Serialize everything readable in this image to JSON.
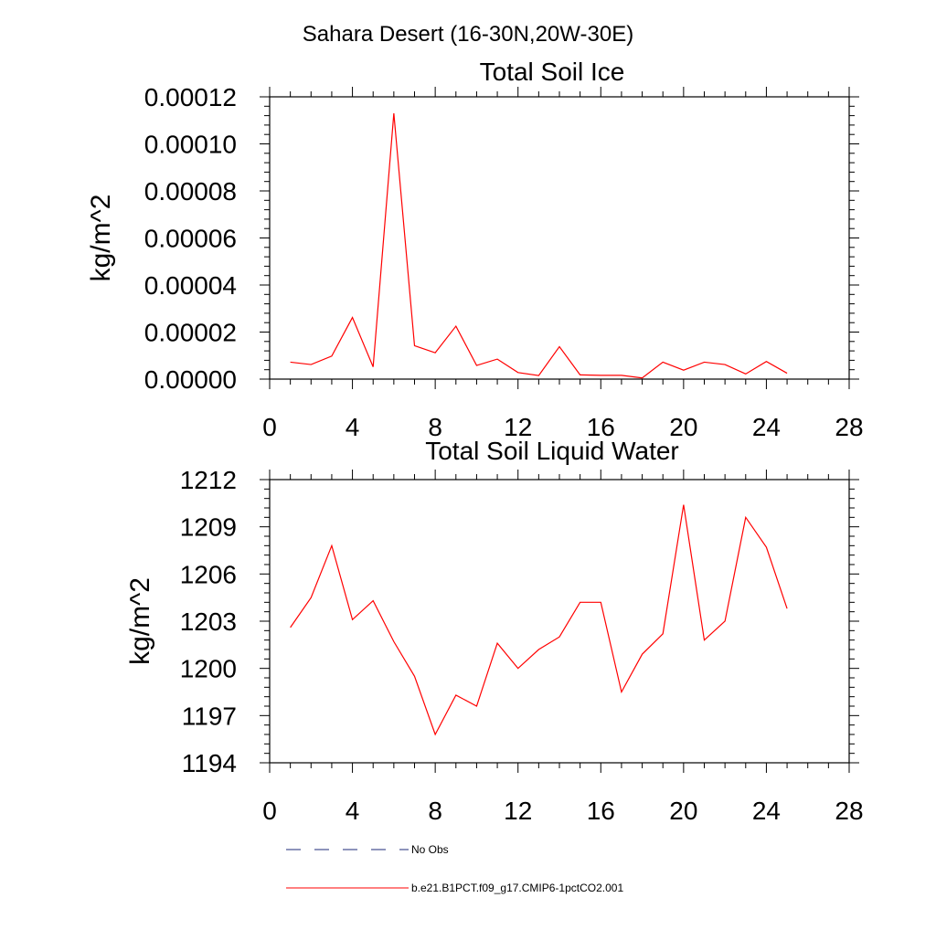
{
  "figure": {
    "main_title": "Sahara Desert (16-30N,20W-30E)"
  },
  "chart_data": [
    {
      "type": "line",
      "title": "Total Soil Ice",
      "xlabel": "",
      "ylabel": "kg/m^2",
      "xlim": [
        0,
        28
      ],
      "ylim": [
        0,
        0.00012
      ],
      "x_ticks": [
        "0",
        "4",
        "8",
        "12",
        "16",
        "20",
        "24",
        "28"
      ],
      "y_ticks": [
        "0.00000",
        "0.00002",
        "0.00004",
        "0.00006",
        "0.00008",
        "0.00010",
        "0.00012"
      ],
      "grid": false,
      "series": [
        {
          "name": "b.e21.B1PCT.f09_g17.CMIP6-1pctCO2.001",
          "color": "#ff0000",
          "x": [
            1,
            2,
            3,
            4,
            5,
            6,
            7,
            8,
            9,
            10,
            11,
            12,
            13,
            14,
            15,
            16,
            17,
            18,
            19,
            20,
            21,
            22,
            23,
            24,
            25
          ],
          "y": [
            7.2e-06,
            6.2e-06,
            9.8e-06,
            2.62e-05,
            5.2e-06,
            0.000113,
            1.42e-05,
            1.12e-05,
            2.25e-05,
            5.8e-06,
            8.5e-06,
            2.8e-06,
            1.5e-06,
            1.38e-05,
            1.8e-06,
            1.6e-06,
            1.6e-06,
            5e-07,
            7.2e-06,
            3.8e-06,
            7.2e-06,
            6.2e-06,
            2.2e-06,
            7.5e-06,
            2.5e-06
          ]
        }
      ]
    },
    {
      "type": "line",
      "title": "Total Soil Liquid Water",
      "xlabel": "",
      "ylabel": "kg/m^2",
      "xlim": [
        0,
        28
      ],
      "ylim": [
        1194,
        1212
      ],
      "x_ticks": [
        "0",
        "4",
        "8",
        "12",
        "16",
        "20",
        "24",
        "28"
      ],
      "y_ticks": [
        "1194",
        "1197",
        "1200",
        "1203",
        "1206",
        "1209",
        "1212"
      ],
      "grid": false,
      "series": [
        {
          "name": "b.e21.B1PCT.f09_g17.CMIP6-1pctCO2.001",
          "color": "#ff0000",
          "x": [
            1,
            2,
            3,
            4,
            5,
            6,
            7,
            8,
            9,
            10,
            11,
            12,
            13,
            14,
            15,
            16,
            17,
            18,
            19,
            20,
            21,
            22,
            23,
            24,
            25
          ],
          "y": [
            1202.6,
            1204.5,
            1207.8,
            1203.1,
            1204.3,
            1201.7,
            1199.5,
            1195.8,
            1198.3,
            1197.6,
            1201.6,
            1200.0,
            1201.2,
            1202.0,
            1204.2,
            1204.2,
            1198.5,
            1200.9,
            1202.2,
            1210.4,
            1201.8,
            1203.0,
            1209.6,
            1207.7,
            1203.8
          ]
        }
      ]
    }
  ],
  "legend": {
    "position": "bottom-center",
    "items": [
      {
        "label": "No Obs",
        "style": "dashed",
        "color": "#1e2a78"
      },
      {
        "label": "b.e21.B1PCT.f09_g17.CMIP6-1pctCO2.001",
        "style": "solid",
        "color": "#ff0000"
      }
    ]
  }
}
